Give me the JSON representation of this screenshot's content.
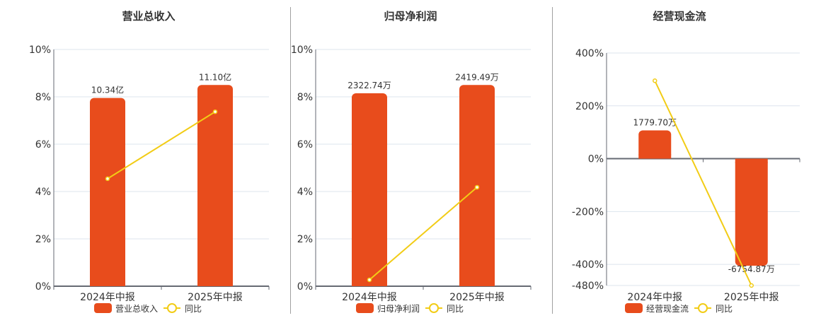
{
  "colors": {
    "bar": "#e84c1c",
    "line": "#f2cc16",
    "grid": "#dde4ee",
    "axis": "#666a73",
    "text": "#333333"
  },
  "chart_data": [
    {
      "type": "bar+line",
      "title": "营业总收入",
      "categories": [
        "2024年中报",
        "2025年中报"
      ],
      "series": [
        {
          "name": "营业总收入",
          "type": "bar",
          "values": [
            10.34,
            11.1
          ],
          "unit": "亿",
          "labels": [
            "10.34亿",
            "11.10亿"
          ],
          "bar_axis_pct": [
            7.95,
            8.5
          ]
        },
        {
          "name": "同比",
          "type": "line",
          "values": [
            4.54,
            7.37
          ],
          "unit": "%"
        }
      ],
      "yaxis": {
        "ticks": [
          "0%",
          "2%",
          "4%",
          "6%",
          "8%",
          "10%"
        ],
        "min": 0,
        "max": 10
      },
      "legend": [
        "营业总收入",
        "同比"
      ],
      "legend_position": "bottom"
    },
    {
      "type": "bar+line",
      "title": "归母净利润",
      "categories": [
        "2024年中报",
        "2025年中报"
      ],
      "series": [
        {
          "name": "归母净利润",
          "type": "bar",
          "values": [
            2322.74,
            2419.49
          ],
          "unit": "万",
          "labels": [
            "2322.74万",
            "2419.49万"
          ],
          "bar_axis_pct": [
            8.15,
            8.5
          ]
        },
        {
          "name": "同比",
          "type": "line",
          "values": [
            0.27,
            4.18
          ],
          "unit": "%"
        }
      ],
      "yaxis": {
        "ticks": [
          "0%",
          "2%",
          "4%",
          "6%",
          "8%",
          "10%"
        ],
        "min": 0,
        "max": 10
      },
      "legend": [
        "归母净利润",
        "同比"
      ],
      "legend_position": "bottom"
    },
    {
      "type": "bar+line",
      "title": "经营现金流",
      "categories": [
        "2024年中报",
        "2025年中报"
      ],
      "series": [
        {
          "name": "经营现金流",
          "type": "bar",
          "values": [
            1779.7,
            -6754.87
          ],
          "unit": "万",
          "labels": [
            "1779.70万",
            "-6754.87万"
          ],
          "bar_axis_pct": [
            107,
            -405
          ]
        },
        {
          "name": "同比",
          "type": "line",
          "values": [
            295,
            -480
          ],
          "unit": "%"
        }
      ],
      "yaxis": {
        "ticks": [
          "-480%",
          "-400%",
          "-200%",
          "0%",
          "200%",
          "400%"
        ],
        "tick_values": [
          -480,
          -400,
          -200,
          0,
          200,
          400
        ],
        "min": -480,
        "max": 400
      },
      "legend": [
        "经营现金流",
        "同比"
      ],
      "legend_position": "bottom"
    }
  ]
}
